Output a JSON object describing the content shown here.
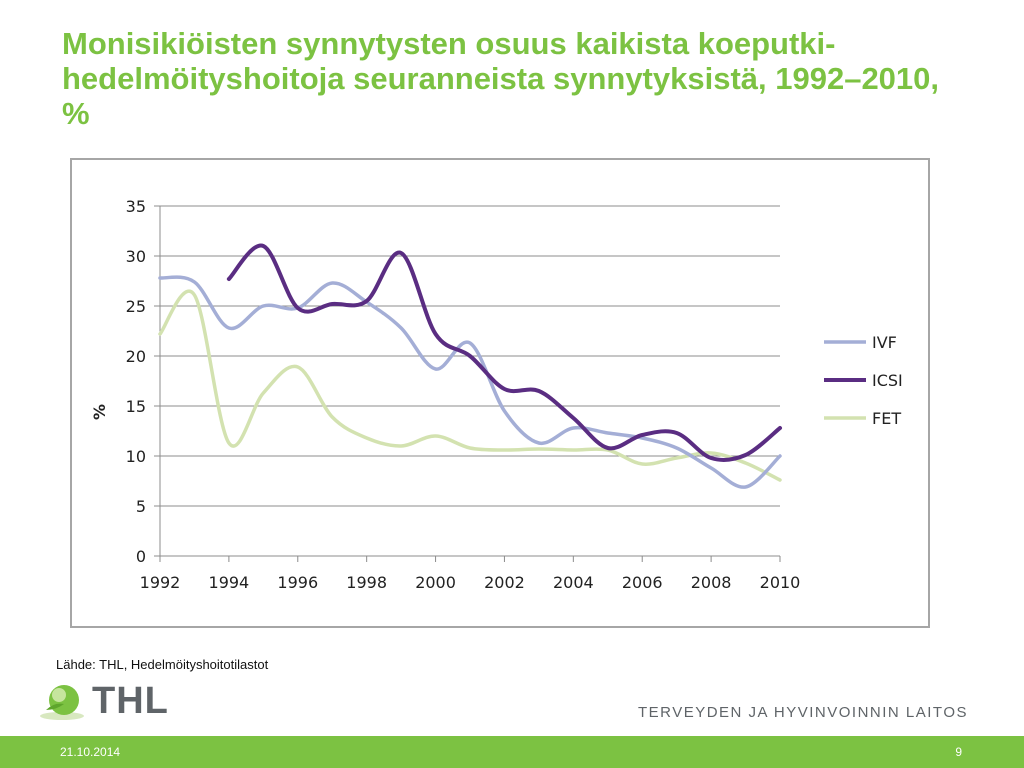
{
  "slide": {
    "title": "Monisikiöisten synnytysten osuus kaikista koeputki-hedelmöityshoitoja seuranneista synnytyksistä, 1992–2010, %",
    "source_note": "Lähde: THL, Hedelmöityshoitotilastot",
    "logo_text": "THL",
    "org_name": "TERVEYDEN JA HYVINVOINNIN LAITOS",
    "footer_date": "21.10.2014",
    "page_number": "9"
  },
  "colors": {
    "title": "#7cc242",
    "footer": "#7cc242",
    "IVF": "#a4aed6",
    "ICSI": "#5a2d82",
    "FET": "#d3e2b0"
  },
  "chart_data": {
    "type": "line",
    "title": "",
    "xlabel": "",
    "ylabel": "%",
    "xlim": [
      1992,
      2010
    ],
    "ylim": [
      0,
      35
    ],
    "x_ticks": [
      1992,
      1994,
      1996,
      1998,
      2000,
      2002,
      2004,
      2006,
      2008,
      2010
    ],
    "y_ticks": [
      0,
      5,
      10,
      15,
      20,
      25,
      30,
      35
    ],
    "grid": "horizontal",
    "legend": "right",
    "x": [
      1992,
      1993,
      1994,
      1995,
      1996,
      1997,
      1998,
      1999,
      2000,
      2001,
      2002,
      2003,
      2004,
      2005,
      2006,
      2007,
      2008,
      2009,
      2010
    ],
    "series": [
      {
        "name": "IVF",
        "values": [
          27.8,
          27.4,
          22.8,
          25.0,
          24.8,
          27.3,
          25.4,
          22.8,
          18.7,
          21.3,
          14.5,
          11.3,
          12.8,
          12.3,
          11.8,
          10.8,
          8.8,
          6.9,
          10.0
        ]
      },
      {
        "name": "ICSI",
        "values": [
          null,
          null,
          27.7,
          31.0,
          24.8,
          25.2,
          25.5,
          30.3,
          22.2,
          20.0,
          16.7,
          16.5,
          13.8,
          10.8,
          12.1,
          12.3,
          9.8,
          10.1,
          12.8
        ]
      },
      {
        "name": "FET",
        "values": [
          22.2,
          26.1,
          11.3,
          16.3,
          18.9,
          13.9,
          11.8,
          11.0,
          12.0,
          10.8,
          10.6,
          10.7,
          10.6,
          10.6,
          9.2,
          9.8,
          10.3,
          9.3,
          7.6
        ]
      }
    ]
  }
}
